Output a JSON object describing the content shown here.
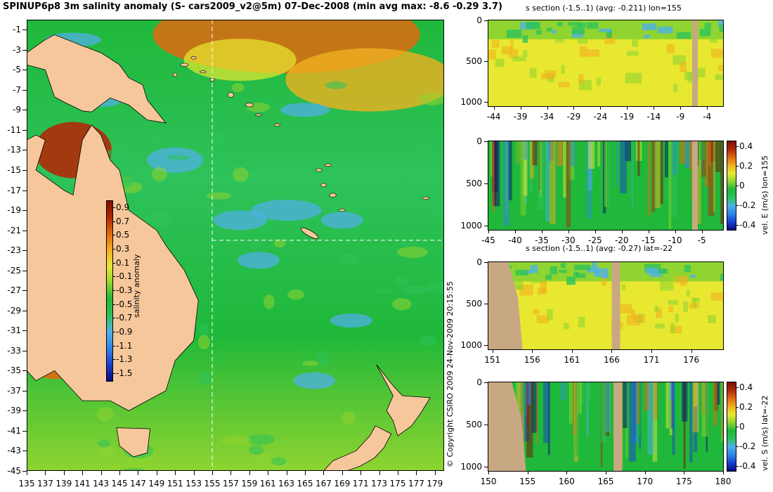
{
  "main_title": "SPINUP6p8 3m salinity anomaly (S- cars2009_v2@5m) 07-Dec-2008 (min avg max: -8.6 -0.29 3.7)",
  "copyright": "© Copyright CSIRO 2009   24-Nov-2009 20:15:55",
  "colors": {
    "land": "#f7c79c",
    "section_land": "#c8a882",
    "crosshair": "#ffffff",
    "colormap": [
      "#0a0a7a",
      "#1a3fd0",
      "#2f86e8",
      "#4fb0e6",
      "#2ec25a",
      "#1fb83a",
      "#8fd430",
      "#e8e830",
      "#f0b020",
      "#e06a10",
      "#b02a08",
      "#7a1000"
    ]
  },
  "chart_data": [
    {
      "type": "heatmap",
      "id": "map",
      "title": "SPINUP6p8 3m salinity anomaly (S- cars2009_v2@5m) 07-Dec-2008 (min avg max: -8.6 -0.29 3.7)",
      "x_ticks": [
        "135",
        "137",
        "139",
        "141",
        "143",
        "145",
        "147",
        "149",
        "151",
        "153",
        "155",
        "157",
        "159",
        "161",
        "163",
        "165",
        "167",
        "169",
        "171",
        "173",
        "175",
        "177",
        "179"
      ],
      "y_ticks": [
        "-1",
        "-3",
        "-5",
        "-7",
        "-9",
        "-11",
        "-13",
        "-15",
        "-17",
        "-19",
        "-21",
        "-23",
        "-25",
        "-27",
        "-29",
        "-31",
        "-33",
        "-35",
        "-37",
        "-39",
        "-41",
        "-43",
        "-45"
      ],
      "xlim": [
        135,
        180
      ],
      "ylim": [
        -45,
        0
      ],
      "crosshair": {
        "lon": 155,
        "lat": -22
      },
      "colorbar": {
        "label": "salinity anomaly",
        "ticks": [
          "0.9",
          "0.7",
          "0.5",
          "0.3",
          "0.1",
          "-0.1",
          "-0.3",
          "-0.5",
          "-0.7",
          "-0.9",
          "-1.1",
          "-1.3",
          "-1.5"
        ],
        "range": [
          -1.5,
          0.9
        ]
      }
    },
    {
      "type": "heatmap",
      "id": "s-section-lon",
      "title": "s section (-1.5..1) (avg: -0.211) lon=155",
      "x_ticks": [
        "-44",
        "-39",
        "-34",
        "-29",
        "-24",
        "-19",
        "-14",
        "-9",
        "-4"
      ],
      "y_ticks": [
        "0",
        "500",
        "1000"
      ],
      "xlim": [
        -45,
        -1
      ],
      "ylim": [
        1050,
        0
      ]
    },
    {
      "type": "heatmap",
      "id": "vel-e-lon",
      "title": "",
      "x_ticks": [
        "-45",
        "-40",
        "-35",
        "-30",
        "-25",
        "-20",
        "-15",
        "-10",
        "-5"
      ],
      "y_ticks": [
        "0",
        "500",
        "1000"
      ],
      "xlim": [
        -45,
        -1
      ],
      "ylim": [
        1050,
        0
      ],
      "colorbar": {
        "label": "vel. E (m/s) lon=155",
        "ticks": [
          "0.4",
          "0.2",
          "0",
          "-0.2",
          "-0.4"
        ],
        "range": [
          -0.45,
          0.45
        ]
      }
    },
    {
      "type": "heatmap",
      "id": "s-section-lat",
      "title": "s section (-1.5..1) (avg: -0.27) lat=-22",
      "x_ticks": [
        "151",
        "156",
        "161",
        "166",
        "171",
        "176"
      ],
      "y_ticks": [
        "0",
        "500",
        "1000"
      ],
      "xlim": [
        150.5,
        180
      ],
      "ylim": [
        1050,
        0
      ]
    },
    {
      "type": "heatmap",
      "id": "vel-s-lat",
      "title": "",
      "x_ticks": [
        "150",
        "155",
        "160",
        "165",
        "170",
        "175",
        "180"
      ],
      "y_ticks": [
        "0",
        "500",
        "1000"
      ],
      "xlim": [
        150,
        180
      ],
      "ylim": [
        1050,
        0
      ],
      "colorbar": {
        "label": "vel. S (m/s) lat=-22",
        "ticks": [
          "0.4",
          "0.2",
          "0",
          "-0.2",
          "-0.4"
        ],
        "range": [
          -0.45,
          0.45
        ]
      }
    }
  ]
}
